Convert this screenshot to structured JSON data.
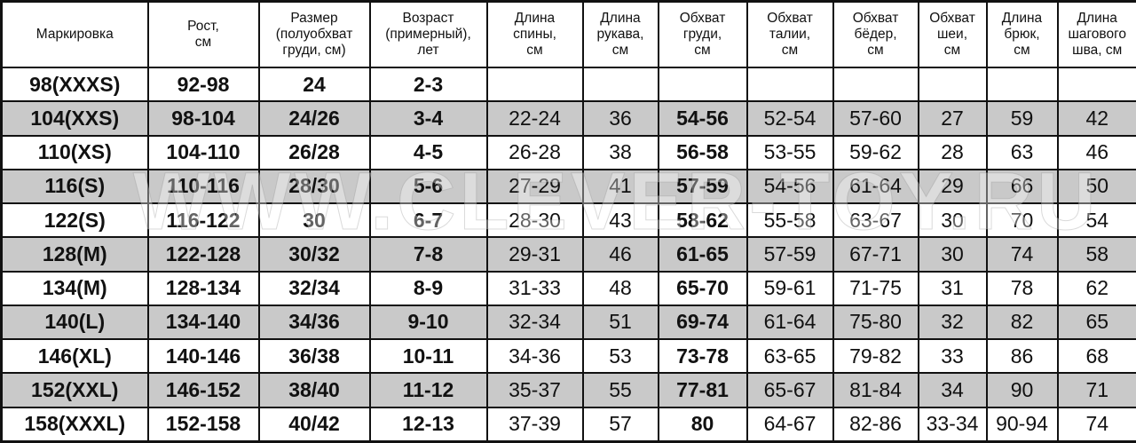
{
  "headers": [
    "Маркировка",
    "Рост,\nсм",
    "Размер\n(полуобхват\nгруди, см)",
    "Возраст\n(примерный),\nлет",
    "Длина\nспины,\nсм",
    "Длина\nрукава,\nсм",
    "Обхват\nгруди,\nсм",
    "Обхват\nталии,\nсм",
    "Обхват\nбёдер,\nсм",
    "Обхват\nшеи,\nсм",
    "Длина\nбрюк,\nсм",
    "Длина\nшагового\nшва, см"
  ],
  "rows": [
    [
      "98(XXXS)",
      "92-98",
      "24",
      "2-3",
      "",
      "",
      "",
      "",
      "",
      "",
      "",
      ""
    ],
    [
      "104(XXS)",
      "98-104",
      "24/26",
      "3-4",
      "22-24",
      "36",
      "54-56",
      "52-54",
      "57-60",
      "27",
      "59",
      "42"
    ],
    [
      "110(XS)",
      "104-110",
      "26/28",
      "4-5",
      "26-28",
      "38",
      "56-58",
      "53-55",
      "59-62",
      "28",
      "63",
      "46"
    ],
    [
      "116(S)",
      "110-116",
      "28/30",
      "5-6",
      "27-29",
      "41",
      "57-59",
      "54-56",
      "61-64",
      "29",
      "66",
      "50"
    ],
    [
      "122(S)",
      "116-122",
      "30",
      "6-7",
      "28-30",
      "43",
      "58-62",
      "55-58",
      "63-67",
      "30",
      "70",
      "54"
    ],
    [
      "128(M)",
      "122-128",
      "30/32",
      "7-8",
      "29-31",
      "46",
      "61-65",
      "57-59",
      "67-71",
      "30",
      "74",
      "58"
    ],
    [
      "134(M)",
      "128-134",
      "32/34",
      "8-9",
      "31-33",
      "48",
      "65-70",
      "59-61",
      "71-75",
      "31",
      "78",
      "62"
    ],
    [
      "140(L)",
      "134-140",
      "34/36",
      "9-10",
      "32-34",
      "51",
      "69-74",
      "61-64",
      "75-80",
      "32",
      "82",
      "65"
    ],
    [
      "146(XL)",
      "140-146",
      "36/38",
      "10-11",
      "34-36",
      "53",
      "73-78",
      "63-65",
      "79-82",
      "33",
      "86",
      "68"
    ],
    [
      "152(XXL)",
      "146-152",
      "38/40",
      "11-12",
      "35-37",
      "55",
      "77-81",
      "65-67",
      "81-84",
      "34",
      "90",
      "71"
    ],
    [
      "158(XXXL)",
      "152-158",
      "40/42",
      "12-13",
      "37-39",
      "57",
      "80",
      "64-67",
      "82-86",
      "33-34",
      "90-94",
      "74"
    ]
  ],
  "watermark": "WWW.CLEVER-TOY.RU",
  "colors": {
    "gray_row": "#c9c9c9",
    "border": "#111111"
  }
}
